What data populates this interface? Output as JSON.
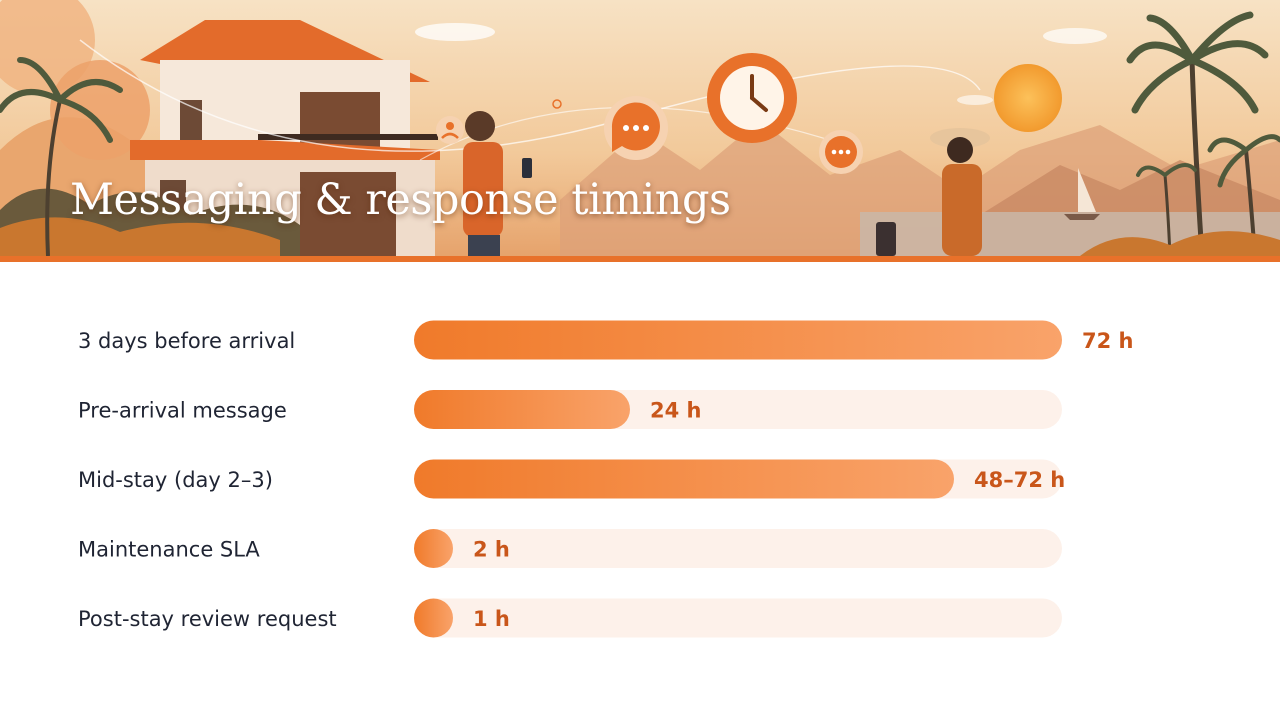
{
  "header": {
    "title": "Messaging & response timings"
  },
  "colors": {
    "accent": "#e8712a",
    "bar_start": "#f07a2a",
    "bar_end": "#f9a36a",
    "track": "#fdf1ea",
    "value_text": "#c9561a",
    "label_text": "#1f2433"
  },
  "chart_data": {
    "type": "bar",
    "orientation": "horizontal",
    "title": "Messaging & response timings",
    "xlabel": "",
    "ylabel": "",
    "unit": "h",
    "xlim": [
      0,
      72
    ],
    "grid": false,
    "categories": [
      "3 days before arrival",
      "Pre-arrival message",
      "Mid-stay (day 2–3)",
      "Maintenance SLA",
      "Post-stay review request"
    ],
    "values": [
      72,
      24,
      60,
      2,
      1
    ],
    "value_labels": [
      "72 h",
      "24 h",
      "48–72 h",
      "2 h",
      "1 h"
    ]
  }
}
